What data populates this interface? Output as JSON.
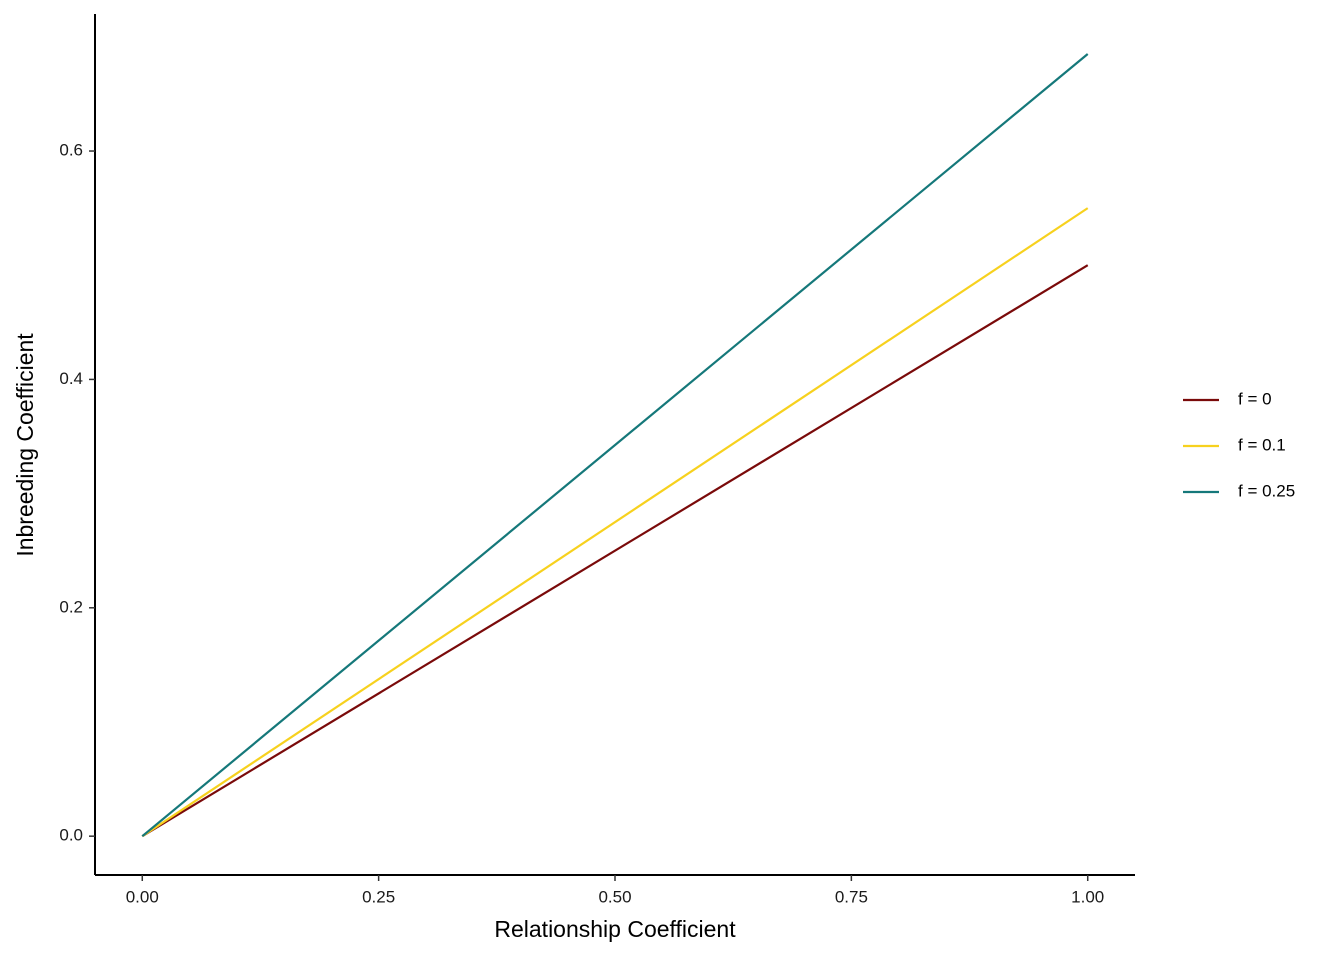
{
  "chart_data": {
    "type": "line",
    "x_label": "Relationship Coefficient",
    "y_label": "Inbreeding Coefficient",
    "x": [
      0,
      1
    ],
    "series": [
      {
        "name": "f = 0",
        "color": "#7a0a0a",
        "values": [
          0,
          0.5
        ]
      },
      {
        "name": "f = 0.1",
        "color": "#f7d11e",
        "values": [
          0,
          0.55
        ]
      },
      {
        "name": "f = 0.25",
        "color": "#15787a",
        "values": [
          0,
          0.685
        ]
      }
    ],
    "xlim": [
      -0.05,
      1.05
    ],
    "ylim": [
      -0.034,
      0.72
    ],
    "xticks": [
      {
        "value": 0,
        "label": "0.00"
      },
      {
        "value": 0.25,
        "label": "0.25"
      },
      {
        "value": 0.5,
        "label": "0.50"
      },
      {
        "value": 0.75,
        "label": "0.75"
      },
      {
        "value": 1,
        "label": "1.00"
      }
    ],
    "yticks": [
      {
        "value": 0,
        "label": "0.0"
      },
      0.2,
      0.4,
      0.6
    ],
    "grid": false,
    "legend": "right"
  }
}
